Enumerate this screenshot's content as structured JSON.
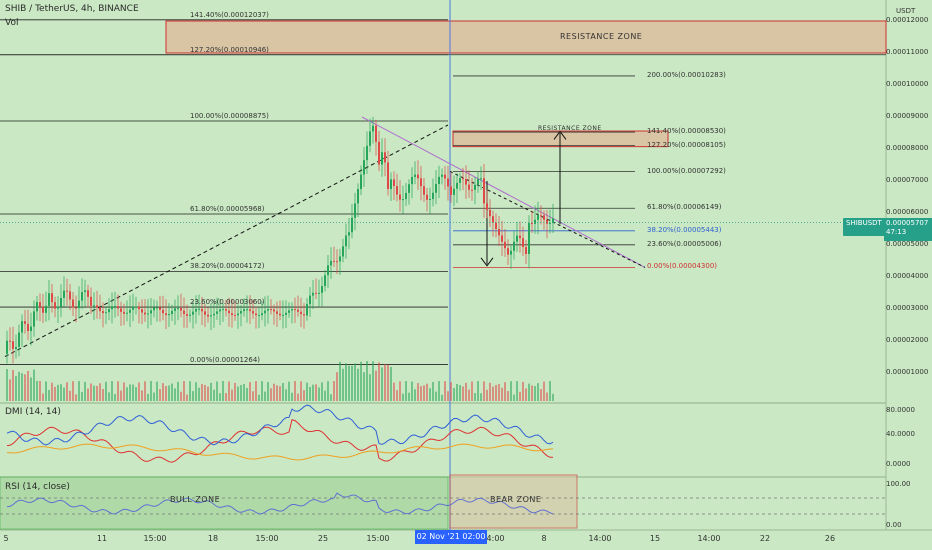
{
  "header": {
    "symbol_line": "SHIB / TetherUS, 4h, BINANCE",
    "vol_label": "Vol",
    "dmi_label": "DMI (14, 14)",
    "rsi_label": "RSI (14, close)",
    "currency": "USDT"
  },
  "price_axis": {
    "ticks": [
      "0.00012000",
      "0.00011000",
      "0.00010000",
      "0.00009000",
      "0.00008000",
      "0.00007000",
      "0.00006000",
      "0.00005000",
      "0.00004000",
      "0.00003000",
      "0.00002000",
      "0.00001000"
    ],
    "values": [
      12,
      11,
      10,
      9,
      8,
      7,
      6,
      5,
      4,
      3,
      2,
      1
    ],
    "symbol_tag": "SHIBUSDT",
    "current_price": "0.00005707",
    "countdown": "47:13",
    "current_value": 5.707
  },
  "dmi_axis": {
    "ticks": [
      "80.0000",
      "40.0000",
      "0.0000"
    ]
  },
  "rsi_axis": {
    "ticks": [
      "100.00",
      "0.00"
    ]
  },
  "time_axis": {
    "ticks": [
      "5",
      "11",
      "15:00",
      "18",
      "15:00",
      "25",
      "15:00",
      "04:00",
      "8",
      "14:00",
      "15",
      "14:00",
      "22",
      "26"
    ],
    "cursor_label": "02 Nov '21  02:00"
  },
  "left_fib": [
    {
      "label": "141.40%(0.00012037)",
      "value": 12.037
    },
    {
      "label": "127.20%(0.00010946)",
      "value": 10.946
    },
    {
      "label": "100.00%(0.00008875)",
      "value": 8.875
    },
    {
      "label": "61.80%(0.00005968)",
      "value": 5.968
    },
    {
      "label": "38.20%(0.00004172)",
      "value": 4.172
    },
    {
      "label": "23.60%(0.00003060)",
      "value": 3.06
    },
    {
      "label": "0.00%(0.00001264)",
      "value": 1.264
    }
  ],
  "right_fib": [
    {
      "label": "200.00%(0.00010283)",
      "value": 10.283,
      "color": "#333333"
    },
    {
      "label": "141.40%(0.00008530)",
      "value": 8.53,
      "color": "#333333"
    },
    {
      "label": "127.20%(0.00008105)",
      "value": 8.105,
      "color": "#333333"
    },
    {
      "label": "100.00%(0.00007292)",
      "value": 7.292,
      "color": "#333333"
    },
    {
      "label": "61.80%(0.00006149)",
      "value": 6.149,
      "color": "#333333"
    },
    {
      "label": "38.20%(0.00005443)",
      "value": 5.443,
      "color": "#3060d0"
    },
    {
      "label": "23.60%(0.00005006)",
      "value": 5.006,
      "color": "#333333"
    },
    {
      "label": "0.00%(0.00004300)",
      "value": 4.3,
      "color": "#d03030"
    }
  ],
  "zones": {
    "resistance_big": "RESISTANCE ZONE",
    "resistance_small": "RESISTANCE ZONE",
    "bull": "BULL  ZONE",
    "bear": "BEAR  ZONE"
  },
  "colors": {
    "background": "#c9e8c3",
    "up_candle": "#26a65b",
    "down_candle": "#e04848",
    "fib_red": "#d03030",
    "zone_fill": "#d9c4a4",
    "trendline": "#b070d0",
    "dmi_plus": "#3060d8",
    "dmi_minus": "#e03030",
    "adx": "#f0a020",
    "rsi": "#6070d0"
  }
}
